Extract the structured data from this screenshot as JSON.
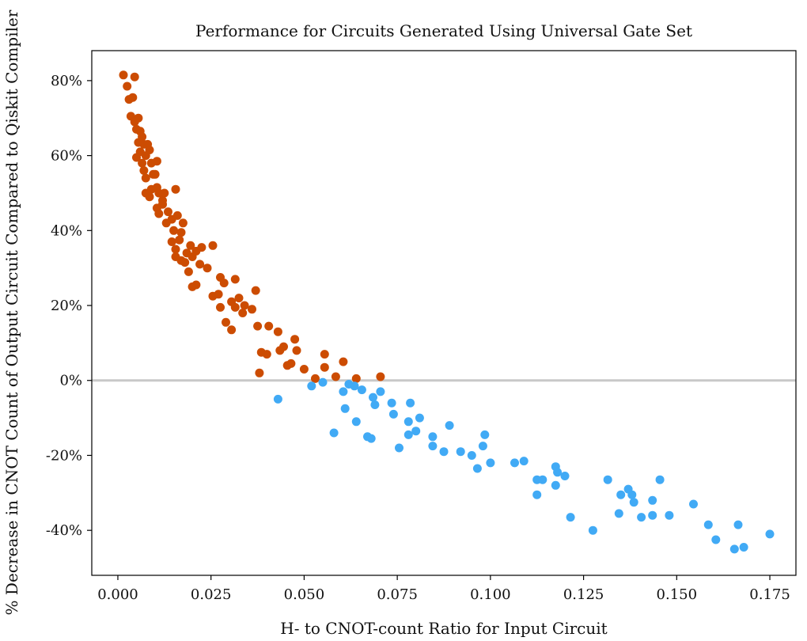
{
  "chart_data": {
    "type": "scatter",
    "title": "Performance for Circuits Generated Using Universal Gate Set",
    "xlabel": "H- to CNOT-count Ratio for Input Circuit",
    "ylabel": "% Decrease in CNOT Count of Output Circuit Compared to Qiskit Compiler",
    "xlim": [
      -0.007,
      0.182
    ],
    "ylim": [
      -52,
      88
    ],
    "x_ticks": [
      0.0,
      0.025,
      0.05,
      0.075,
      0.1,
      0.125,
      0.15,
      0.175
    ],
    "x_tick_labels": [
      "0.000",
      "0.025",
      "0.050",
      "0.075",
      "0.100",
      "0.125",
      "0.150",
      "0.175"
    ],
    "y_ticks": [
      -40,
      -20,
      0,
      20,
      40,
      60,
      80
    ],
    "y_tick_labels": [
      "-40%",
      "-20%",
      "0%",
      "20%",
      "40%",
      "60%",
      "80%"
    ],
    "reference_line_y": 0,
    "grid": false,
    "colors": {
      "positive": "#cc4c02",
      "negative": "#41aaf5",
      "reference_line": "#c8c8c8"
    },
    "series": [
      {
        "color": "#cc4c02",
        "points": [
          [
            0.0015,
            81.5
          ],
          [
            0.0025,
            78.5
          ],
          [
            0.0045,
            81
          ],
          [
            0.003,
            75
          ],
          [
            0.004,
            75.5
          ],
          [
            0.0035,
            70.5
          ],
          [
            0.0045,
            69
          ],
          [
            0.005,
            67
          ],
          [
            0.0055,
            70
          ],
          [
            0.006,
            66.5
          ],
          [
            0.0065,
            65
          ],
          [
            0.007,
            63
          ],
          [
            0.0055,
            63.5
          ],
          [
            0.006,
            61
          ],
          [
            0.005,
            59.5
          ],
          [
            0.0065,
            58
          ],
          [
            0.007,
            56
          ],
          [
            0.0075,
            60
          ],
          [
            0.008,
            63
          ],
          [
            0.0085,
            61.5
          ],
          [
            0.0075,
            54
          ],
          [
            0.009,
            58
          ],
          [
            0.0095,
            55
          ],
          [
            0.0105,
            58.5
          ],
          [
            0.01,
            55
          ],
          [
            0.0075,
            50
          ],
          [
            0.0085,
            49
          ],
          [
            0.009,
            51
          ],
          [
            0.0105,
            51.5
          ],
          [
            0.011,
            50
          ],
          [
            0.012,
            48
          ],
          [
            0.0125,
            50
          ],
          [
            0.0105,
            46
          ],
          [
            0.011,
            44.5
          ],
          [
            0.012,
            47
          ],
          [
            0.0135,
            45
          ],
          [
            0.013,
            42
          ],
          [
            0.0145,
            43
          ],
          [
            0.0155,
            51
          ],
          [
            0.015,
            40
          ],
          [
            0.016,
            44
          ],
          [
            0.017,
            39.5
          ],
          [
            0.0175,
            42
          ],
          [
            0.0145,
            37
          ],
          [
            0.0155,
            35
          ],
          [
            0.0165,
            37.5
          ],
          [
            0.0155,
            33
          ],
          [
            0.017,
            32
          ],
          [
            0.018,
            31.5
          ],
          [
            0.019,
            29
          ],
          [
            0.0185,
            34
          ],
          [
            0.0195,
            36
          ],
          [
            0.02,
            33
          ],
          [
            0.021,
            34.5
          ],
          [
            0.022,
            31
          ],
          [
            0.02,
            25
          ],
          [
            0.021,
            25.5
          ],
          [
            0.0225,
            35.5
          ],
          [
            0.024,
            30
          ],
          [
            0.0255,
            36
          ],
          [
            0.0255,
            22.5
          ],
          [
            0.027,
            23
          ],
          [
            0.0275,
            27.5
          ],
          [
            0.0285,
            26
          ],
          [
            0.0275,
            19.5
          ],
          [
            0.029,
            15.5
          ],
          [
            0.0305,
            21
          ],
          [
            0.0315,
            27
          ],
          [
            0.0315,
            19.5
          ],
          [
            0.0325,
            22
          ],
          [
            0.0305,
            13.5
          ],
          [
            0.0335,
            18
          ],
          [
            0.034,
            20
          ],
          [
            0.036,
            19
          ],
          [
            0.037,
            24
          ],
          [
            0.0375,
            14.5
          ],
          [
            0.0385,
            7.5
          ],
          [
            0.038,
            2
          ],
          [
            0.04,
            7
          ],
          [
            0.0405,
            14.5
          ],
          [
            0.043,
            13
          ],
          [
            0.0435,
            8
          ],
          [
            0.0445,
            9
          ],
          [
            0.0455,
            4
          ],
          [
            0.0465,
            4.5
          ],
          [
            0.0475,
            11
          ],
          [
            0.048,
            8
          ],
          [
            0.05,
            3
          ],
          [
            0.053,
            0.5
          ],
          [
            0.0555,
            7
          ],
          [
            0.0555,
            3.5
          ],
          [
            0.0585,
            1
          ],
          [
            0.0605,
            5
          ],
          [
            0.064,
            0.5
          ],
          [
            0.0705,
            1
          ]
        ]
      },
      {
        "color": "#41aaf5",
        "points": [
          [
            0.043,
            -5
          ],
          [
            0.052,
            -1.5
          ],
          [
            0.055,
            -0.5
          ],
          [
            0.0605,
            -3
          ],
          [
            0.061,
            -7.5
          ],
          [
            0.062,
            -1
          ],
          [
            0.0635,
            -1.5
          ],
          [
            0.064,
            -11
          ],
          [
            0.0655,
            -2.5
          ],
          [
            0.058,
            -14
          ],
          [
            0.067,
            -15
          ],
          [
            0.068,
            -15.5
          ],
          [
            0.0685,
            -4.5
          ],
          [
            0.069,
            -6.5
          ],
          [
            0.0705,
            -3
          ],
          [
            0.0735,
            -6
          ],
          [
            0.074,
            -9
          ],
          [
            0.0755,
            -18
          ],
          [
            0.078,
            -11
          ],
          [
            0.078,
            -14.5
          ],
          [
            0.0785,
            -6
          ],
          [
            0.08,
            -13.5
          ],
          [
            0.081,
            -10
          ],
          [
            0.0845,
            -15
          ],
          [
            0.0845,
            -17.5
          ],
          [
            0.0875,
            -19
          ],
          [
            0.089,
            -12
          ],
          [
            0.092,
            -19
          ],
          [
            0.095,
            -20
          ],
          [
            0.0965,
            -23.5
          ],
          [
            0.098,
            -17.5
          ],
          [
            0.0985,
            -14.5
          ],
          [
            0.1,
            -22
          ],
          [
            0.1065,
            -22
          ],
          [
            0.109,
            -21.5
          ],
          [
            0.1125,
            -26.5
          ],
          [
            0.1125,
            -30.5
          ],
          [
            0.114,
            -26.5
          ],
          [
            0.1175,
            -23
          ],
          [
            0.1175,
            -28
          ],
          [
            0.118,
            -24.5
          ],
          [
            0.12,
            -25.5
          ],
          [
            0.1215,
            -36.5
          ],
          [
            0.1275,
            -40
          ],
          [
            0.1315,
            -26.5
          ],
          [
            0.1345,
            -35.5
          ],
          [
            0.135,
            -30.5
          ],
          [
            0.137,
            -29
          ],
          [
            0.138,
            -30.5
          ],
          [
            0.1385,
            -32.5
          ],
          [
            0.1405,
            -36.5
          ],
          [
            0.1435,
            -32
          ],
          [
            0.1435,
            -36
          ],
          [
            0.1455,
            -26.5
          ],
          [
            0.148,
            -36
          ],
          [
            0.1545,
            -33
          ],
          [
            0.1585,
            -38.5
          ],
          [
            0.1605,
            -42.5
          ],
          [
            0.1655,
            -45
          ],
          [
            0.1665,
            -38.5
          ],
          [
            0.168,
            -44.5
          ],
          [
            0.175,
            -41
          ]
        ]
      }
    ]
  }
}
